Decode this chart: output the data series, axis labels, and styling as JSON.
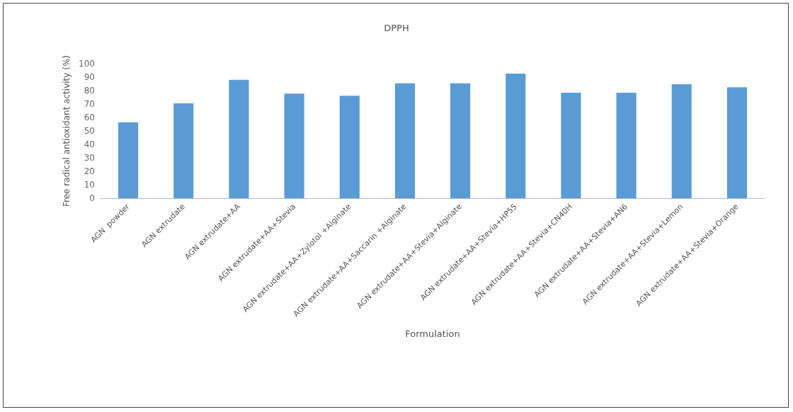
{
  "chart_data": {
    "type": "bar",
    "title": "DPPH",
    "xlabel": "Formulation",
    "ylabel": "Free radical antioxidant activity (%)",
    "categories": [
      "AGN  powder",
      "AGN extrudate",
      "AGN extrudate+AA",
      "AGN extrudate+AA+Stevia",
      "AGN extrudate+AA+Zylotol +Alginate",
      "AGN extrudate+AA+Saccarin +Alginate",
      "AGN extrudate+AA+Stevia+Alginate",
      "AGN extrudate+AA+Stevia+HP55",
      "AGN extrudate+AA+Stevia+CN40H",
      "AGN extrudate+AA+Stevia+AN6",
      "AGN extrudate+AA+Stevia+Lemon",
      "AGN extrudate+AA+Stevia+Orange"
    ],
    "values": [
      56.5,
      70.5,
      88,
      77.7,
      76.2,
      85.4,
      85.4,
      92.6,
      78.4,
      78.4,
      84.7,
      82.5
    ],
    "color": "#5b9bd5",
    "ylim": [
      0,
      100
    ],
    "yticks": [
      0,
      10,
      20,
      30,
      40,
      50,
      60,
      70,
      80,
      90,
      100
    ],
    "grid": false
  }
}
